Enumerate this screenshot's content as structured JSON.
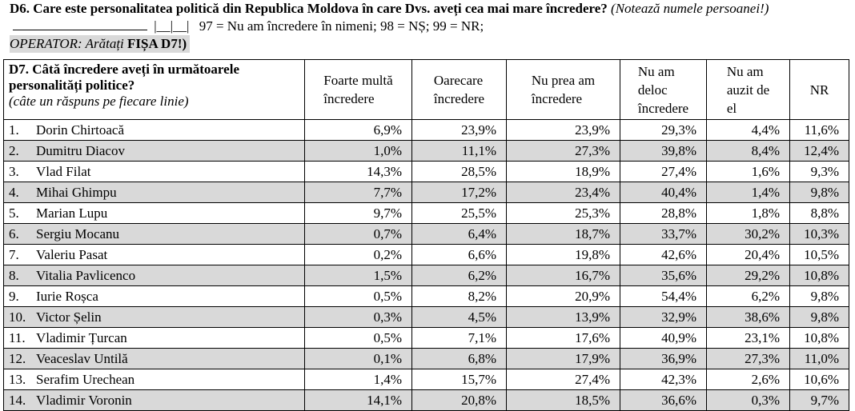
{
  "d6": {
    "label": "D6.",
    "question": "Care este personalitatea politică din Republica Moldova în care Dvs. aveți cea mai mare încredere?",
    "note": "(Notează numele persoanei!)",
    "codebox": "|__|__|",
    "codes": "97 = Nu am încredere în nimeni; 98 = NȘ; 99 = NR;",
    "operator_prefix": "OPERATOR: Arătați",
    "operator_card": "FIȘA D7!)"
  },
  "d7": {
    "question_bold": "D7.  Câtă încredere aveți în următoarele personalități politice?",
    "question_note": "(câte un răspuns pe fiecare linie)",
    "columns": [
      {
        "lines": [
          "Foarte multă",
          "încredere"
        ]
      },
      {
        "lines": [
          "Oarecare",
          "încredere"
        ]
      },
      {
        "lines": [
          "Nu prea am",
          "încredere"
        ]
      },
      {
        "lines": [
          "Nu am",
          "deloc",
          "încredere"
        ]
      },
      {
        "lines": [
          "Nu am",
          "auzit de",
          "el"
        ]
      },
      {
        "lines": [
          "NR"
        ]
      }
    ],
    "rows": [
      {
        "num": "1.",
        "name": "Dorin Chirtoacă",
        "values": [
          "6,9%",
          "23,9%",
          "23,9%",
          "29,3%",
          "4,4%",
          "11,6%"
        ]
      },
      {
        "num": "2.",
        "name": "Dumitru Diacov",
        "values": [
          "1,0%",
          "11,1%",
          "27,3%",
          "39,8%",
          "8,4%",
          "12,4%"
        ]
      },
      {
        "num": "3.",
        "name": "Vlad Filat",
        "values": [
          "14,3%",
          "28,5%",
          "18,9%",
          "27,4%",
          "1,6%",
          "9,3%"
        ]
      },
      {
        "num": "4.",
        "name": "Mihai Ghimpu",
        "values": [
          "7,7%",
          "17,2%",
          "23,4%",
          "40,4%",
          "1,4%",
          "9,8%"
        ]
      },
      {
        "num": "5.",
        "name": "Marian Lupu",
        "values": [
          "9,7%",
          "25,5%",
          "25,3%",
          "28,8%",
          "1,8%",
          "8,8%"
        ]
      },
      {
        "num": "6.",
        "name": "Sergiu Mocanu",
        "values": [
          "0,7%",
          "6,4%",
          "18,7%",
          "33,7%",
          "30,2%",
          "10,3%"
        ]
      },
      {
        "num": "7.",
        "name": "Valeriu Pasat",
        "values": [
          "0,2%",
          "6,6%",
          "19,8%",
          "42,6%",
          "20,4%",
          "10,5%"
        ]
      },
      {
        "num": "8.",
        "name": "Vitalia Pavlicenco",
        "values": [
          "1,5%",
          "6,2%",
          "16,7%",
          "35,6%",
          "29,2%",
          "10,8%"
        ]
      },
      {
        "num": "9.",
        "name": "Iurie Roșca",
        "values": [
          "0,5%",
          "8,2%",
          "20,9%",
          "54,4%",
          "6,2%",
          "9,8%"
        ]
      },
      {
        "num": "10.",
        "name": "Victor Șelin",
        "values": [
          "0,3%",
          "4,5%",
          "13,9%",
          "32,9%",
          "38,6%",
          "9,8%"
        ]
      },
      {
        "num": "11.",
        "name": "Vladimir Țurcan",
        "values": [
          "0,5%",
          "7,1%",
          "17,6%",
          "40,9%",
          "23,1%",
          "10,8%"
        ]
      },
      {
        "num": "12.",
        "name": "Veaceslav Untilă",
        "values": [
          "0,1%",
          "6,8%",
          "17,9%",
          "36,9%",
          "27,3%",
          "11,0%"
        ]
      },
      {
        "num": "13.",
        "name": "Serafim Urechean",
        "values": [
          "1,4%",
          "15,7%",
          "27,4%",
          "42,3%",
          "2,6%",
          "10,6%"
        ]
      },
      {
        "num": "14.",
        "name": "Vladimir Voronin",
        "values": [
          "14,1%",
          "20,8%",
          "18,5%",
          "36,6%",
          "0,3%",
          "9,7%"
        ]
      }
    ]
  }
}
